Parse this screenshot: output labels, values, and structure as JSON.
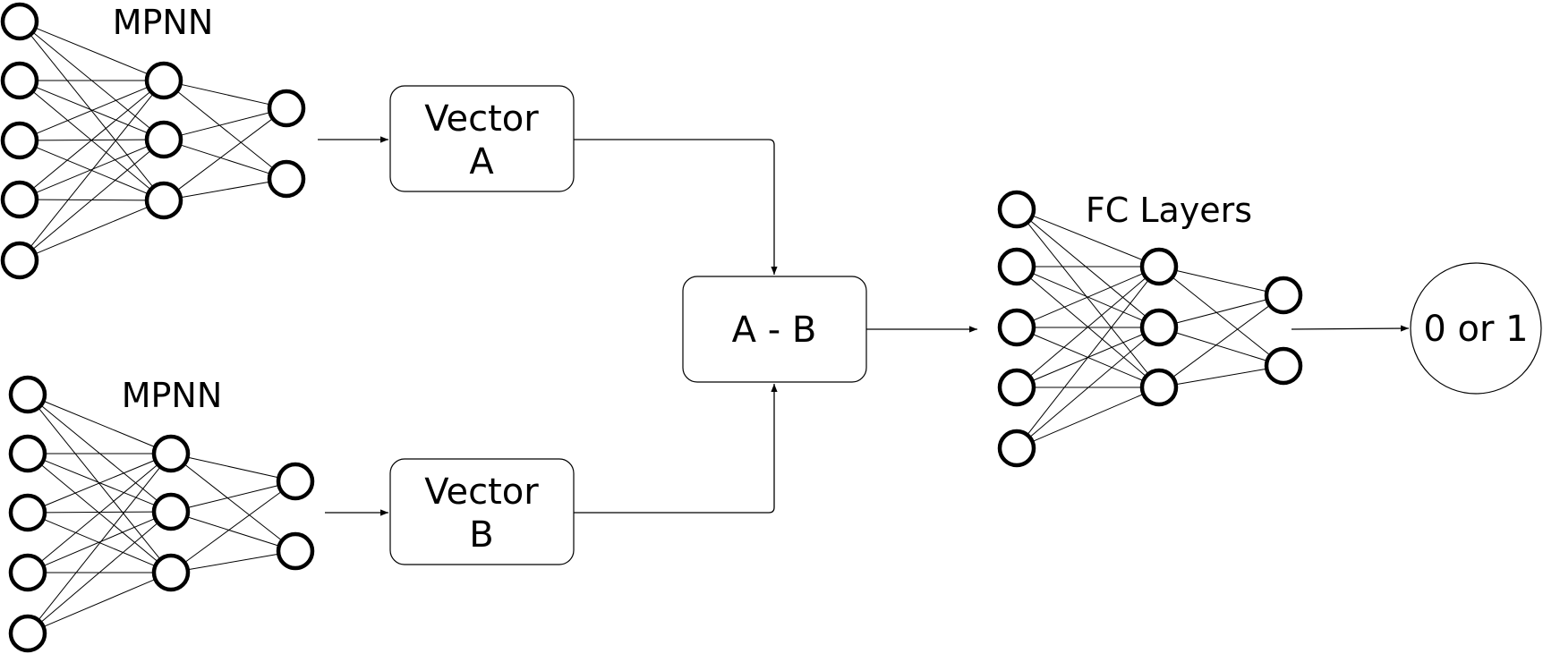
{
  "mpnn_top": {
    "title": "MPNN",
    "layers": [
      5,
      3,
      2
    ]
  },
  "mpnn_bottom": {
    "title": "MPNN",
    "layers": [
      5,
      3,
      2
    ]
  },
  "fc": {
    "title": "FC Layers",
    "layers": [
      5,
      3,
      2
    ]
  },
  "vector_a": {
    "line1": "Vector",
    "line2": "A"
  },
  "vector_b": {
    "line1": "Vector",
    "line2": "B"
  },
  "diff": {
    "label": "A - B"
  },
  "output": {
    "label": "0 or 1"
  }
}
